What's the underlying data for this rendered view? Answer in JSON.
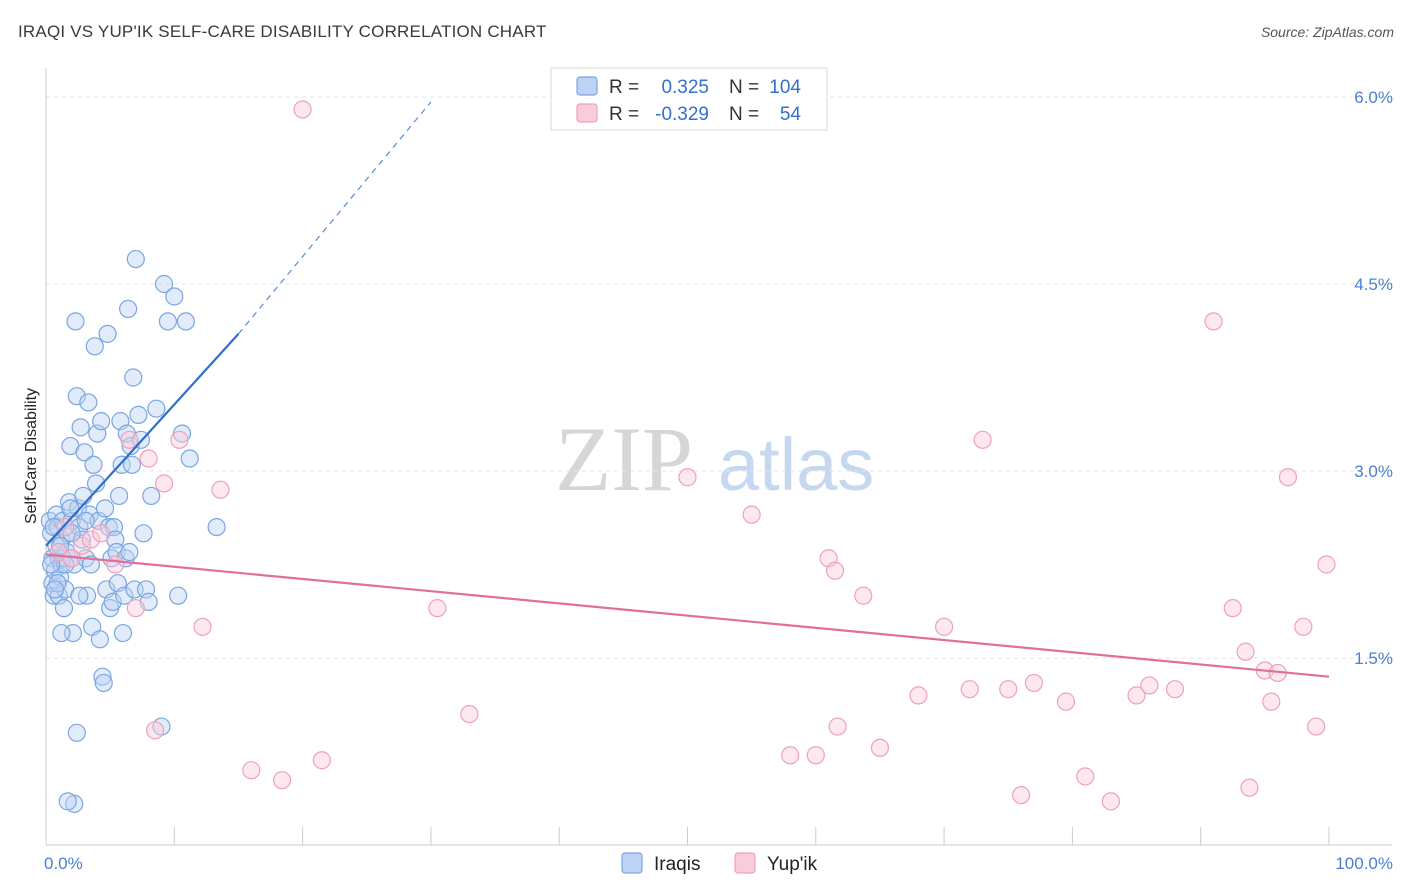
{
  "title": "IRAQI VS YUP'IK SELF-CARE DISABILITY CORRELATION CHART",
  "source": "Source: ZipAtlas.com",
  "watermark": {
    "zip": "ZIP",
    "atlas": "atlas"
  },
  "chart_data": {
    "type": "scatter",
    "ylabel": "Self-Care Disability",
    "xlabel": "",
    "xlim": [
      0,
      100
    ],
    "ylim": [
      0,
      6.0
    ],
    "x_tick_labels": [
      "0.0%",
      "100.0%"
    ],
    "y_ticks": [
      1.5,
      3.0,
      4.5,
      6.0
    ],
    "y_tick_labels": [
      "1.5%",
      "3.0%",
      "4.5%",
      "6.0%"
    ],
    "legend": [
      {
        "name": "Iraqis",
        "r_label": "R =",
        "r": "0.325",
        "n_label": "N =",
        "n": "104",
        "color": "#7aa6e0"
      },
      {
        "name": "Yup'ik",
        "r_label": "R =",
        "r": "-0.329",
        "n_label": "N =",
        "n": "54",
        "color": "#f0a0ba"
      }
    ],
    "series": [
      {
        "name": "Iraqis",
        "color": "#7aa6e0",
        "line_color": "#2f6fcc",
        "trend": {
          "x0": 0,
          "y0": 2.4,
          "x1": 15,
          "y1": 4.1,
          "dash_to_x": 30,
          "dash_to_y": 5.96
        },
        "points": [
          [
            0.3,
            2.6
          ],
          [
            0.4,
            2.5
          ],
          [
            0.5,
            2.3
          ],
          [
            0.5,
            2.1
          ],
          [
            0.6,
            2.0
          ],
          [
            0.7,
            2.2
          ],
          [
            0.8,
            2.4
          ],
          [
            0.8,
            2.65
          ],
          [
            0.9,
            2.55
          ],
          [
            1.0,
            2.3
          ],
          [
            1.0,
            2.0
          ],
          [
            1.1,
            2.15
          ],
          [
            1.2,
            2.45
          ],
          [
            1.2,
            2.25
          ],
          [
            1.3,
            2.6
          ],
          [
            1.4,
            1.9
          ],
          [
            1.5,
            2.05
          ],
          [
            1.6,
            2.35
          ],
          [
            1.7,
            2.5
          ],
          [
            1.8,
            2.75
          ],
          [
            1.9,
            3.2
          ],
          [
            2.0,
            2.6
          ],
          [
            2.0,
            2.3
          ],
          [
            2.1,
            1.7
          ],
          [
            2.2,
            2.25
          ],
          [
            2.3,
            4.2
          ],
          [
            2.4,
            3.6
          ],
          [
            2.5,
            2.7
          ],
          [
            2.6,
            2.55
          ],
          [
            2.7,
            3.35
          ],
          [
            2.8,
            2.45
          ],
          [
            2.9,
            2.8
          ],
          [
            3.0,
            3.15
          ],
          [
            3.1,
            2.3
          ],
          [
            3.2,
            2.0
          ],
          [
            3.3,
            3.55
          ],
          [
            3.4,
            2.65
          ],
          [
            3.5,
            2.25
          ],
          [
            3.6,
            1.75
          ],
          [
            3.7,
            3.05
          ],
          [
            3.8,
            4.0
          ],
          [
            3.9,
            2.9
          ],
          [
            4.0,
            3.3
          ],
          [
            4.1,
            2.6
          ],
          [
            4.2,
            1.65
          ],
          [
            4.3,
            3.4
          ],
          [
            4.4,
            1.35
          ],
          [
            4.5,
            1.3
          ],
          [
            4.6,
            2.7
          ],
          [
            4.7,
            2.05
          ],
          [
            4.8,
            4.1
          ],
          [
            4.9,
            2.55
          ],
          [
            5.0,
            1.9
          ],
          [
            5.1,
            2.3
          ],
          [
            5.2,
            1.95
          ],
          [
            5.3,
            2.55
          ],
          [
            5.4,
            2.45
          ],
          [
            5.5,
            2.35
          ],
          [
            5.6,
            2.1
          ],
          [
            5.7,
            2.8
          ],
          [
            5.8,
            3.4
          ],
          [
            5.9,
            3.05
          ],
          [
            6.0,
            1.7
          ],
          [
            6.1,
            2.0
          ],
          [
            6.2,
            2.3
          ],
          [
            6.3,
            3.3
          ],
          [
            6.4,
            4.3
          ],
          [
            6.5,
            2.35
          ],
          [
            6.6,
            3.2
          ],
          [
            6.7,
            3.05
          ],
          [
            6.8,
            3.75
          ],
          [
            6.9,
            2.05
          ],
          [
            7.0,
            4.7
          ],
          [
            7.2,
            3.45
          ],
          [
            7.4,
            3.25
          ],
          [
            7.6,
            2.5
          ],
          [
            7.8,
            2.05
          ],
          [
            8.0,
            1.95
          ],
          [
            8.2,
            2.8
          ],
          [
            8.6,
            3.5
          ],
          [
            9.0,
            0.95
          ],
          [
            9.2,
            4.5
          ],
          [
            9.5,
            4.2
          ],
          [
            10.0,
            4.4
          ],
          [
            10.3,
            2.0
          ],
          [
            10.6,
            3.3
          ],
          [
            10.9,
            4.2
          ],
          [
            11.2,
            3.1
          ],
          [
            13.3,
            2.55
          ],
          [
            2.2,
            0.33
          ],
          [
            1.7,
            0.35
          ],
          [
            2.4,
            0.9
          ],
          [
            0.6,
            2.55
          ],
          [
            0.9,
            2.1
          ],
          [
            1.3,
            2.3
          ],
          [
            1.5,
            2.25
          ],
          [
            2.0,
            2.5
          ],
          [
            2.6,
            2.0
          ],
          [
            3.1,
            2.6
          ],
          [
            1.1,
            2.4
          ],
          [
            0.4,
            2.25
          ],
          [
            0.7,
            2.05
          ],
          [
            1.2,
            1.7
          ],
          [
            1.9,
            2.7
          ]
        ]
      },
      {
        "name": "Yup'ik",
        "color": "#f0a0ba",
        "line_color": "#e0709a",
        "trend": {
          "x0": 0,
          "y0": 2.33,
          "x1": 100,
          "y1": 1.35
        },
        "points": [
          [
            1.0,
            2.35
          ],
          [
            1.5,
            2.55
          ],
          [
            2.0,
            2.3
          ],
          [
            2.8,
            2.4
          ],
          [
            3.5,
            2.45
          ],
          [
            4.3,
            2.5
          ],
          [
            5.4,
            2.25
          ],
          [
            6.5,
            3.25
          ],
          [
            7.0,
            1.9
          ],
          [
            8.0,
            3.1
          ],
          [
            8.5,
            0.92
          ],
          [
            9.2,
            2.9
          ],
          [
            10.4,
            3.25
          ],
          [
            12.2,
            1.75
          ],
          [
            13.6,
            2.85
          ],
          [
            16.0,
            0.6
          ],
          [
            18.4,
            0.52
          ],
          [
            20.0,
            5.9
          ],
          [
            21.5,
            0.68
          ],
          [
            30.5,
            1.9
          ],
          [
            33.0,
            1.05
          ],
          [
            50.0,
            2.95
          ],
          [
            55.0,
            2.65
          ],
          [
            58.0,
            0.72
          ],
          [
            60.0,
            0.72
          ],
          [
            61.0,
            2.3
          ],
          [
            61.5,
            2.2
          ],
          [
            61.7,
            0.95
          ],
          [
            63.7,
            2.0
          ],
          [
            65.0,
            0.78
          ],
          [
            68.0,
            1.2
          ],
          [
            70.0,
            1.75
          ],
          [
            72.0,
            1.25
          ],
          [
            73.0,
            3.25
          ],
          [
            75.0,
            1.25
          ],
          [
            76.0,
            0.4
          ],
          [
            77.0,
            1.3
          ],
          [
            79.5,
            1.15
          ],
          [
            81.0,
            0.55
          ],
          [
            83.0,
            0.35
          ],
          [
            85.0,
            1.2
          ],
          [
            86.0,
            1.28
          ],
          [
            88.0,
            1.25
          ],
          [
            91.0,
            4.2
          ],
          [
            92.5,
            1.9
          ],
          [
            93.5,
            1.55
          ],
          [
            93.8,
            0.46
          ],
          [
            95.0,
            1.4
          ],
          [
            95.5,
            1.15
          ],
          [
            96.0,
            1.38
          ],
          [
            96.8,
            2.95
          ],
          [
            98.0,
            1.75
          ],
          [
            99.0,
            0.95
          ],
          [
            99.8,
            2.25
          ]
        ]
      }
    ]
  }
}
